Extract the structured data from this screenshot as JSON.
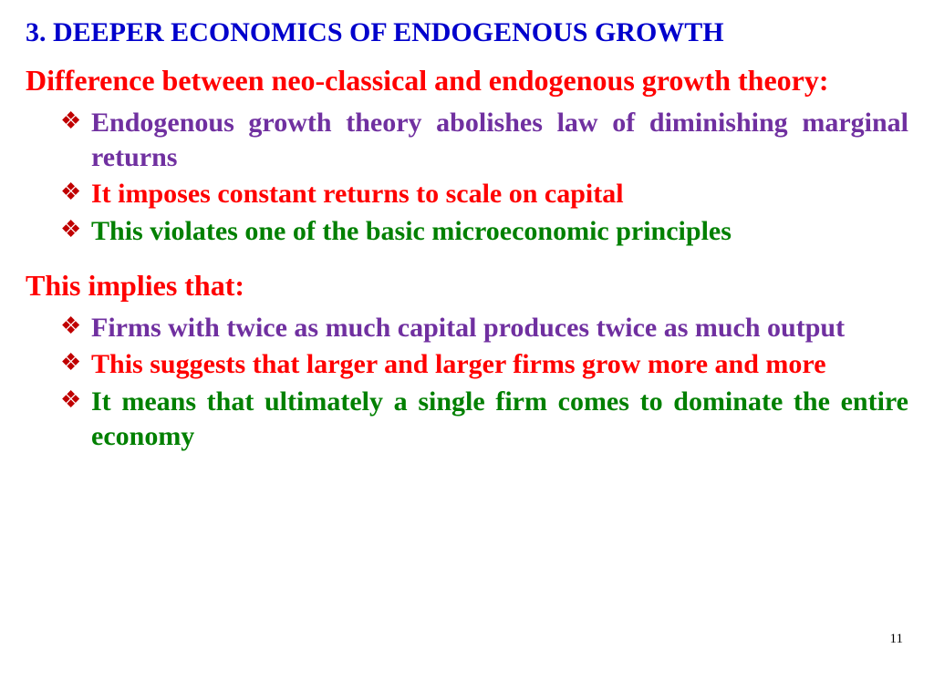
{
  "heading": {
    "text": "3. DEEPER ECONOMICS OF ENDOGENOUS GROWTH",
    "color": "#0000cc",
    "fontsize": 30
  },
  "section1": {
    "subheading": {
      "text": "Difference between neo-classical and endogenous growth theory:",
      "color": "#ff0000",
      "fontsize": 32
    },
    "items": [
      {
        "text": "Endogenous growth theory abolishes law of diminishing marginal returns",
        "color": "#7030a0",
        "fontsize": 30
      },
      {
        "text": "It imposes constant returns to scale on capital",
        "color": "#ff0000",
        "fontsize": 30
      },
      {
        "text": "This violates one of the basic microeconomic principles",
        "color": "#008000",
        "fontsize": 30
      }
    ]
  },
  "section2": {
    "subheading": {
      "text": "This implies that:",
      "color": "#ff0000",
      "fontsize": 32
    },
    "items": [
      {
        "text": "Firms with twice as much capital produces twice as much output",
        "color": "#7030a0",
        "fontsize": 30
      },
      {
        "text": "This suggests that larger and larger firms grow more and more",
        "color": "#ff0000",
        "fontsize": 30
      },
      {
        "text": "It means that ultimately a single firm comes to dominate the entire economy",
        "color": "#008000",
        "fontsize": 30
      }
    ]
  },
  "page_number": {
    "text": "11",
    "color": "#000000",
    "fontsize": 15
  },
  "bullet_marker_color": "#c00000",
  "bullet_marker_fontsize": 26
}
